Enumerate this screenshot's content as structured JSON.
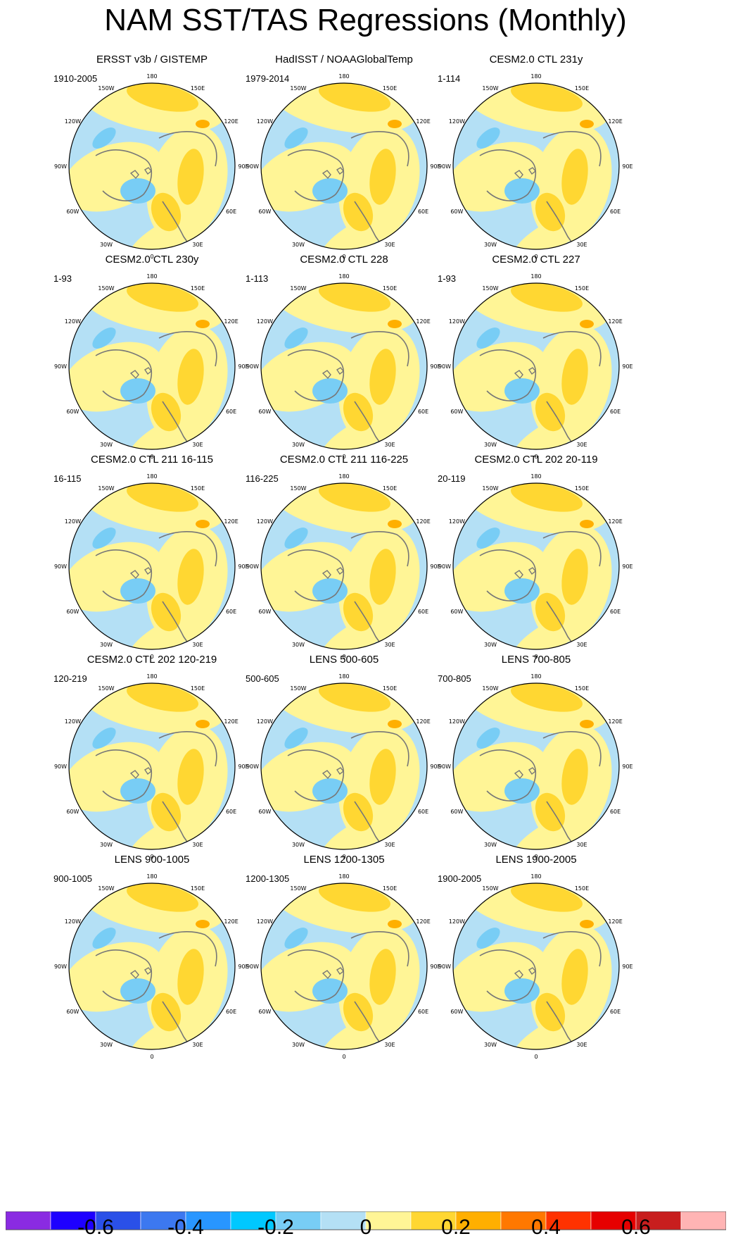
{
  "title": "NAM SST/TAS Regressions (Monthly)",
  "lon_labels": [
    "180",
    "150E",
    "120E",
    "90E",
    "60E",
    "30E",
    "0",
    "30W",
    "60W",
    "90W",
    "120W",
    "150W"
  ],
  "panels": [
    {
      "title": "ERSST v3b / GISTEMP",
      "period": "1910-2005"
    },
    {
      "title": "HadISST / NOAAGlobalTemp",
      "period": "1979-2014"
    },
    {
      "title": "CESM2.0 CTL 231y",
      "period": "1-114"
    },
    {
      "title": "CESM2.0 CTL 230y",
      "period": "1-93"
    },
    {
      "title": "CESM2.0 CTL 228",
      "period": "1-113"
    },
    {
      "title": "CESM2.0 CTL 227",
      "period": "1-93"
    },
    {
      "title": "CESM2.0 CTL 211 16-115",
      "period": "16-115"
    },
    {
      "title": "CESM2.0 CTL 211 116-225",
      "period": "116-225"
    },
    {
      "title": "CESM2.0 CTL 202 20-119",
      "period": "20-119"
    },
    {
      "title": "CESM2.0 CTL 202 120-219",
      "period": "120-219"
    },
    {
      "title": "LENS 500-605",
      "period": "500-605"
    },
    {
      "title": "LENS 700-805",
      "period": "700-805"
    },
    {
      "title": "LENS 900-1005",
      "period": "900-1005"
    },
    {
      "title": "LENS 1200-1305",
      "period": "1200-1305"
    },
    {
      "title": "LENS 1900-2005",
      "period": "1900-2005"
    }
  ],
  "colorbar": {
    "colors": [
      "#8a2be2",
      "#1e00ff",
      "#2a50e8",
      "#3c78f0",
      "#2896ff",
      "#00c8ff",
      "#78cdf5",
      "#b4e0f5",
      "#fff596",
      "#ffd732",
      "#ffaf00",
      "#ff7800",
      "#ff3200",
      "#e60000",
      "#c81e1e",
      "#ffb4b4"
    ],
    "labels": [
      "-0.6",
      "-0.4",
      "-0.2",
      "0",
      "0.2",
      "0.4",
      "0.6"
    ]
  }
}
